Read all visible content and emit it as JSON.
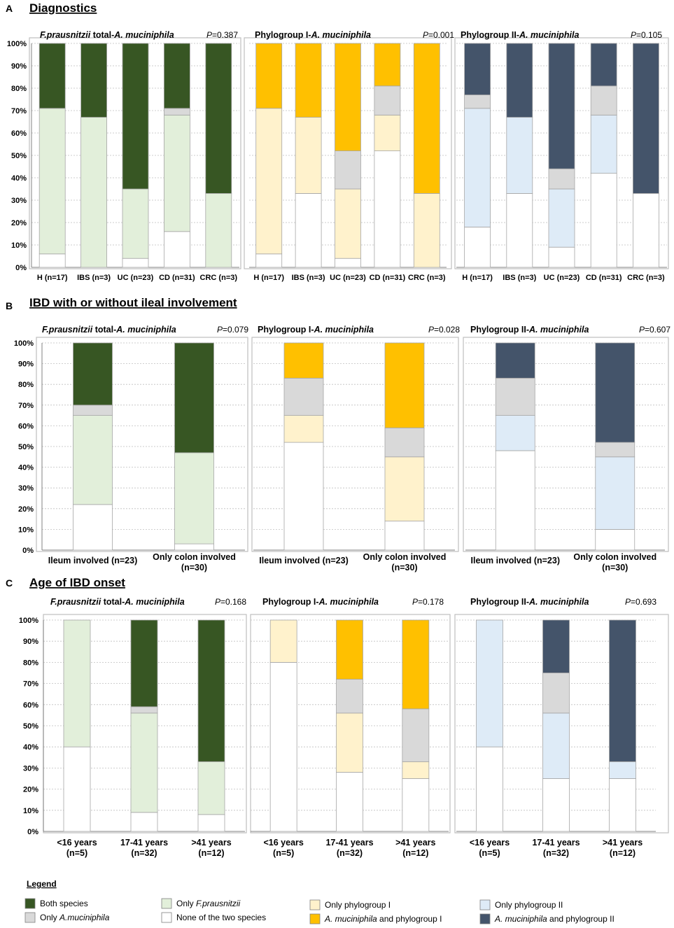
{
  "colors": {
    "both_species": "#375623",
    "only_fprau": "#e2efda",
    "only_amuc": "#d9d9d9",
    "none": "#ffffff",
    "only_pg1": "#fff2cc",
    "amuc_pg1": "#ffc000",
    "only_pg2": "#deebf7",
    "amuc_pg2": "#44546a",
    "frame": "#bfbfbf",
    "grid": "#bfbfbf",
    "bar_stroke": "#a6a6a6"
  },
  "sections": [
    {
      "letter": "A",
      "title": "Diagnostics"
    },
    {
      "letter": "B",
      "title": "IBD with or without ileal involvement"
    },
    {
      "letter": "C",
      "title": "Age of IBD onset"
    }
  ],
  "chart_data": [
    {
      "type": "bar",
      "stacked": true,
      "section": "A",
      "title_italic": "F.prausnitzii",
      "title_rest": " total-",
      "title_italic2": "A. muciniphila",
      "p_label": "P",
      "p_value": "=0.387",
      "categories": [
        "H (n=17)",
        "IBS (n=3)",
        "UC (n=23)",
        "CD (n=31)",
        "CRC (n=3)"
      ],
      "yticks": [
        "0%",
        "10%",
        "20%",
        "30%",
        "40%",
        "50%",
        "60%",
        "70%",
        "80%",
        "90%",
        "100%"
      ],
      "ylim": [
        0,
        100
      ],
      "series": [
        {
          "name": "None of the two species",
          "color_key": "none",
          "values": [
            6,
            0,
            4,
            16,
            0
          ]
        },
        {
          "name": "Only F.prausnitzii",
          "color_key": "only_fprau",
          "values": [
            65,
            67,
            31,
            52,
            33
          ]
        },
        {
          "name": "Only A.muciniphila",
          "color_key": "only_amuc",
          "values": [
            0,
            0,
            0,
            3,
            0
          ]
        },
        {
          "name": "Both species",
          "color_key": "both_species",
          "values": [
            29,
            33,
            65,
            29,
            67
          ]
        }
      ]
    },
    {
      "type": "bar",
      "stacked": true,
      "section": "A",
      "title_italic": "",
      "title_rest": "Phylogroup I-",
      "title_italic2": "A. muciniphila",
      "p_label": "P",
      "p_value": "=0.001",
      "categories": [
        "H (n=17)",
        "IBS (n=3)",
        "UC (n=23)",
        "CD (n=31)",
        "CRC (n=3)"
      ],
      "yticks": [],
      "ylim": [
        0,
        100
      ],
      "series": [
        {
          "name": "None of the two species",
          "color_key": "none",
          "values": [
            6,
            33,
            4,
            52,
            0
          ]
        },
        {
          "name": "Only phylogroup I",
          "color_key": "only_pg1",
          "values": [
            65,
            34,
            31,
            16,
            33
          ]
        },
        {
          "name": "Only A.muciniphila",
          "color_key": "only_amuc",
          "values": [
            0,
            0,
            17,
            13,
            0
          ]
        },
        {
          "name": "A. muciniphila and phylogroup I",
          "color_key": "amuc_pg1",
          "values": [
            29,
            33,
            48,
            19,
            67
          ]
        }
      ]
    },
    {
      "type": "bar",
      "stacked": true,
      "section": "A",
      "title_italic": "",
      "title_rest": "Phylogroup II-",
      "title_italic2": "A. muciniphila",
      "p_label": "P",
      "p_value": "=0.105",
      "categories": [
        "H (n=17)",
        "IBS (n=3)",
        "UC (n=23)",
        "CD (n=31)",
        "CRC (n=3)"
      ],
      "yticks": [],
      "ylim": [
        0,
        100
      ],
      "series": [
        {
          "name": "None of the two species",
          "color_key": "none",
          "values": [
            18,
            33,
            9,
            42,
            33
          ]
        },
        {
          "name": "Only phylogroup II",
          "color_key": "only_pg2",
          "values": [
            53,
            34,
            26,
            26,
            0
          ]
        },
        {
          "name": "Only A.muciniphila",
          "color_key": "only_amuc",
          "values": [
            6,
            0,
            9,
            13,
            0
          ]
        },
        {
          "name": "A. muciniphila and phylogroup II",
          "color_key": "amuc_pg2",
          "values": [
            23,
            33,
            56,
            19,
            67
          ]
        }
      ]
    },
    {
      "type": "bar",
      "stacked": true,
      "section": "B",
      "title_italic": "F.prausnitzii",
      "title_rest": " total-",
      "title_italic2": "A. muciniphila",
      "p_label": "P",
      "p_value": "=0.079",
      "categories": [
        "Ileum involved (n=23)",
        "Only colon involved|(n=30)"
      ],
      "yticks": [
        "0%",
        "10%",
        "20%",
        "30%",
        "40%",
        "50%",
        "60%",
        "70%",
        "80%",
        "90%",
        "100%"
      ],
      "ylim": [
        0,
        100
      ],
      "series": [
        {
          "name": "None of the two species",
          "color_key": "none",
          "values": [
            22,
            3
          ]
        },
        {
          "name": "Only F.prausnitzii",
          "color_key": "only_fprau",
          "values": [
            43,
            44
          ]
        },
        {
          "name": "Only A.muciniphila",
          "color_key": "only_amuc",
          "values": [
            5,
            0
          ]
        },
        {
          "name": "Both species",
          "color_key": "both_species",
          "values": [
            30,
            53
          ]
        }
      ]
    },
    {
      "type": "bar",
      "stacked": true,
      "section": "B",
      "title_italic": "",
      "title_rest": "Phylogroup I-",
      "title_italic2": "A. muciniphila",
      "p_label": "P",
      "p_value": "=0.028",
      "categories": [
        "Ileum involved (n=23)",
        "Only colon involved|(n=30)"
      ],
      "yticks": [],
      "ylim": [
        0,
        100
      ],
      "series": [
        {
          "name": "None of the two species",
          "color_key": "none",
          "values": [
            52,
            14
          ]
        },
        {
          "name": "Only phylogroup I",
          "color_key": "only_pg1",
          "values": [
            13,
            31
          ]
        },
        {
          "name": "Only A.muciniphila",
          "color_key": "only_amuc",
          "values": [
            18,
            14
          ]
        },
        {
          "name": "A. muciniphila and phylogroup I",
          "color_key": "amuc_pg1",
          "values": [
            17,
            41
          ]
        }
      ]
    },
    {
      "type": "bar",
      "stacked": true,
      "section": "B",
      "title_italic": "",
      "title_rest": "Phylogroup II-",
      "title_italic2": "A. muciniphila",
      "p_label": "P",
      "p_value": "=0.607",
      "categories": [
        "Ileum involved (n=23)",
        "Only colon involved|(n=30)"
      ],
      "yticks": [],
      "ylim": [
        0,
        100
      ],
      "series": [
        {
          "name": "None of the two species",
          "color_key": "none",
          "values": [
            48,
            10
          ]
        },
        {
          "name": "Only phylogroup II",
          "color_key": "only_pg2",
          "values": [
            17,
            35
          ]
        },
        {
          "name": "Only A.muciniphila",
          "color_key": "only_amuc",
          "values": [
            18,
            7
          ]
        },
        {
          "name": "A. muciniphila and phylogroup II",
          "color_key": "amuc_pg2",
          "values": [
            17,
            48
          ]
        }
      ]
    },
    {
      "type": "bar",
      "stacked": true,
      "section": "C",
      "title_italic": "F.prausnitzii",
      "title_rest": " total-",
      "title_italic2": "A. muciniphila",
      "p_label": "P",
      "p_value": "=0.168",
      "categories": [
        "<16 years|(n=5)",
        "17-41 years|(n=32)",
        ">41 years|(n=12)"
      ],
      "yticks": [
        "0%",
        "10%",
        "20%",
        "30%",
        "40%",
        "50%",
        "60%",
        "70%",
        "80%",
        "90%",
        "100%"
      ],
      "ylim": [
        0,
        100
      ],
      "series": [
        {
          "name": "None of the two species",
          "color_key": "none",
          "values": [
            40,
            9,
            8
          ]
        },
        {
          "name": "Only F.prausnitzii",
          "color_key": "only_fprau",
          "values": [
            60,
            47,
            25
          ]
        },
        {
          "name": "Only A.muciniphila",
          "color_key": "only_amuc",
          "values": [
            0,
            3,
            0
          ]
        },
        {
          "name": "Both species",
          "color_key": "both_species",
          "values": [
            0,
            41,
            67
          ]
        }
      ]
    },
    {
      "type": "bar",
      "stacked": true,
      "section": "C",
      "title_italic": "",
      "title_rest": "Phylogroup I-",
      "title_italic2": "A. muciniphila",
      "p_label": "P",
      "p_value": "=0.178",
      "categories": [
        "<16 years|(n=5)",
        "17-41 years|(n=32)",
        ">41 years|(n=12)"
      ],
      "yticks": [],
      "ylim": [
        0,
        100
      ],
      "series": [
        {
          "name": "None of the two species",
          "color_key": "none",
          "values": [
            80,
            28,
            25
          ]
        },
        {
          "name": "Only phylogroup I",
          "color_key": "only_pg1",
          "values": [
            20,
            28,
            8
          ]
        },
        {
          "name": "Only A.muciniphila",
          "color_key": "only_amuc",
          "values": [
            0,
            16,
            25
          ]
        },
        {
          "name": "A. muciniphila and phylogroup I",
          "color_key": "amuc_pg1",
          "values": [
            0,
            28,
            42
          ]
        }
      ]
    },
    {
      "type": "bar",
      "stacked": true,
      "section": "C",
      "title_italic": "",
      "title_rest": "Phylogroup II-",
      "title_italic2": "A. muciniphila",
      "p_label": "P",
      "p_value": "=0.693",
      "categories": [
        "<16 years|(n=5)",
        "17-41 years|(n=32)",
        ">41 years|(n=12)"
      ],
      "yticks": [],
      "ylim": [
        0,
        100
      ],
      "series": [
        {
          "name": "None of the two species",
          "color_key": "none",
          "values": [
            40,
            25,
            25
          ]
        },
        {
          "name": "Only phylogroup II",
          "color_key": "only_pg2",
          "values": [
            60,
            31,
            8
          ]
        },
        {
          "name": "Only A.muciniphila",
          "color_key": "only_amuc",
          "values": [
            0,
            19,
            0
          ]
        },
        {
          "name": "A. muciniphila and phylogroup II",
          "color_key": "amuc_pg2",
          "values": [
            0,
            25,
            67
          ]
        }
      ]
    }
  ],
  "legend": {
    "title": "Legend",
    "items": [
      {
        "color_key": "both_species",
        "label": "Both species",
        "italic": ""
      },
      {
        "color_key": "only_amuc",
        "label": "Only ",
        "italic": "A.muciniphila"
      },
      {
        "color_key": "only_fprau",
        "label": "Only ",
        "italic": "F.prausnitzii"
      },
      {
        "color_key": "none",
        "label": "None of the two species",
        "italic": ""
      },
      {
        "color_key": "only_pg1",
        "label": "Only phylogroup I",
        "italic": ""
      },
      {
        "color_key": "amuc_pg1",
        "label": " and phylogroup I",
        "italic": "A. muciniphila",
        "italic_first": true
      },
      {
        "color_key": "only_pg2",
        "label": "Only phylogroup II",
        "italic": ""
      },
      {
        "color_key": "amuc_pg2",
        "label": " and phylogroup II",
        "italic": "A. muciniphila",
        "italic_first": true
      }
    ]
  }
}
